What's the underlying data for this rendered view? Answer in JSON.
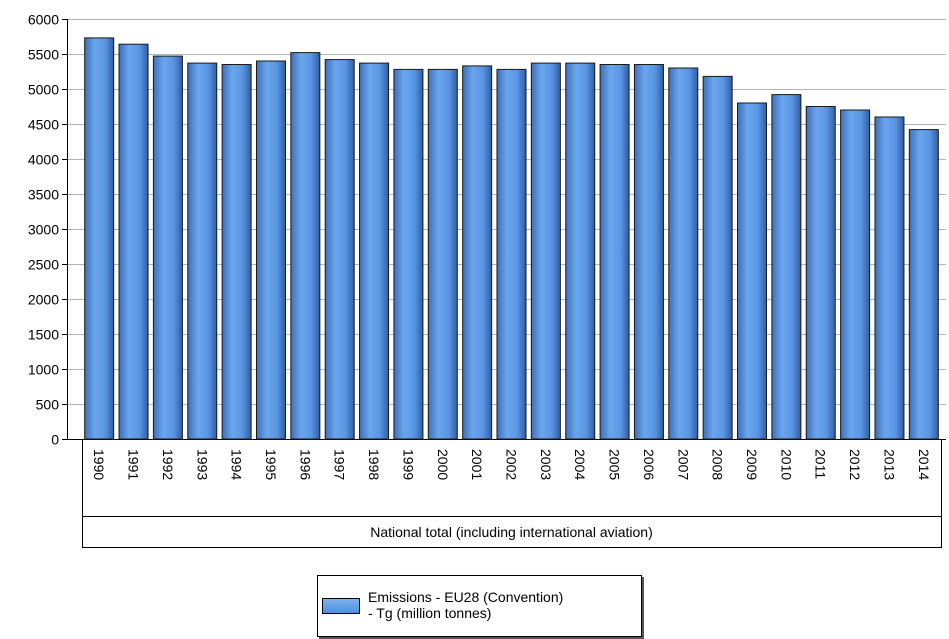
{
  "chart_data": {
    "type": "bar",
    "categories": [
      "1990",
      "1991",
      "1992",
      "1993",
      "1994",
      "1995",
      "1996",
      "1997",
      "1998",
      "1999",
      "2000",
      "2001",
      "2002",
      "2003",
      "2004",
      "2005",
      "2006",
      "2007",
      "2008",
      "2009",
      "2010",
      "2011",
      "2012",
      "2013",
      "2014"
    ],
    "group_label": "National total (including international aviation)",
    "series": [
      {
        "name": "Emissions - EU28 (Convention) - Tg (million tonnes)",
        "values": [
          5730,
          5640,
          5470,
          5370,
          5350,
          5400,
          5520,
          5420,
          5370,
          5280,
          5280,
          5330,
          5280,
          5370,
          5370,
          5350,
          5350,
          5300,
          5180,
          4800,
          4920,
          4750,
          4700,
          4600,
          4420
        ]
      }
    ],
    "ylim": [
      0,
      6000
    ],
    "yticks": [
      0,
      500,
      1000,
      1500,
      2000,
      2500,
      3000,
      3500,
      4000,
      4500,
      5000,
      5500,
      6000
    ],
    "grid": true,
    "legend_position": "bottom",
    "bar_color": "#5b9ae8"
  },
  "legend": {
    "label_line1": "Emissions - EU28 (Convention)",
    "label_line2": "- Tg (million tonnes)"
  }
}
